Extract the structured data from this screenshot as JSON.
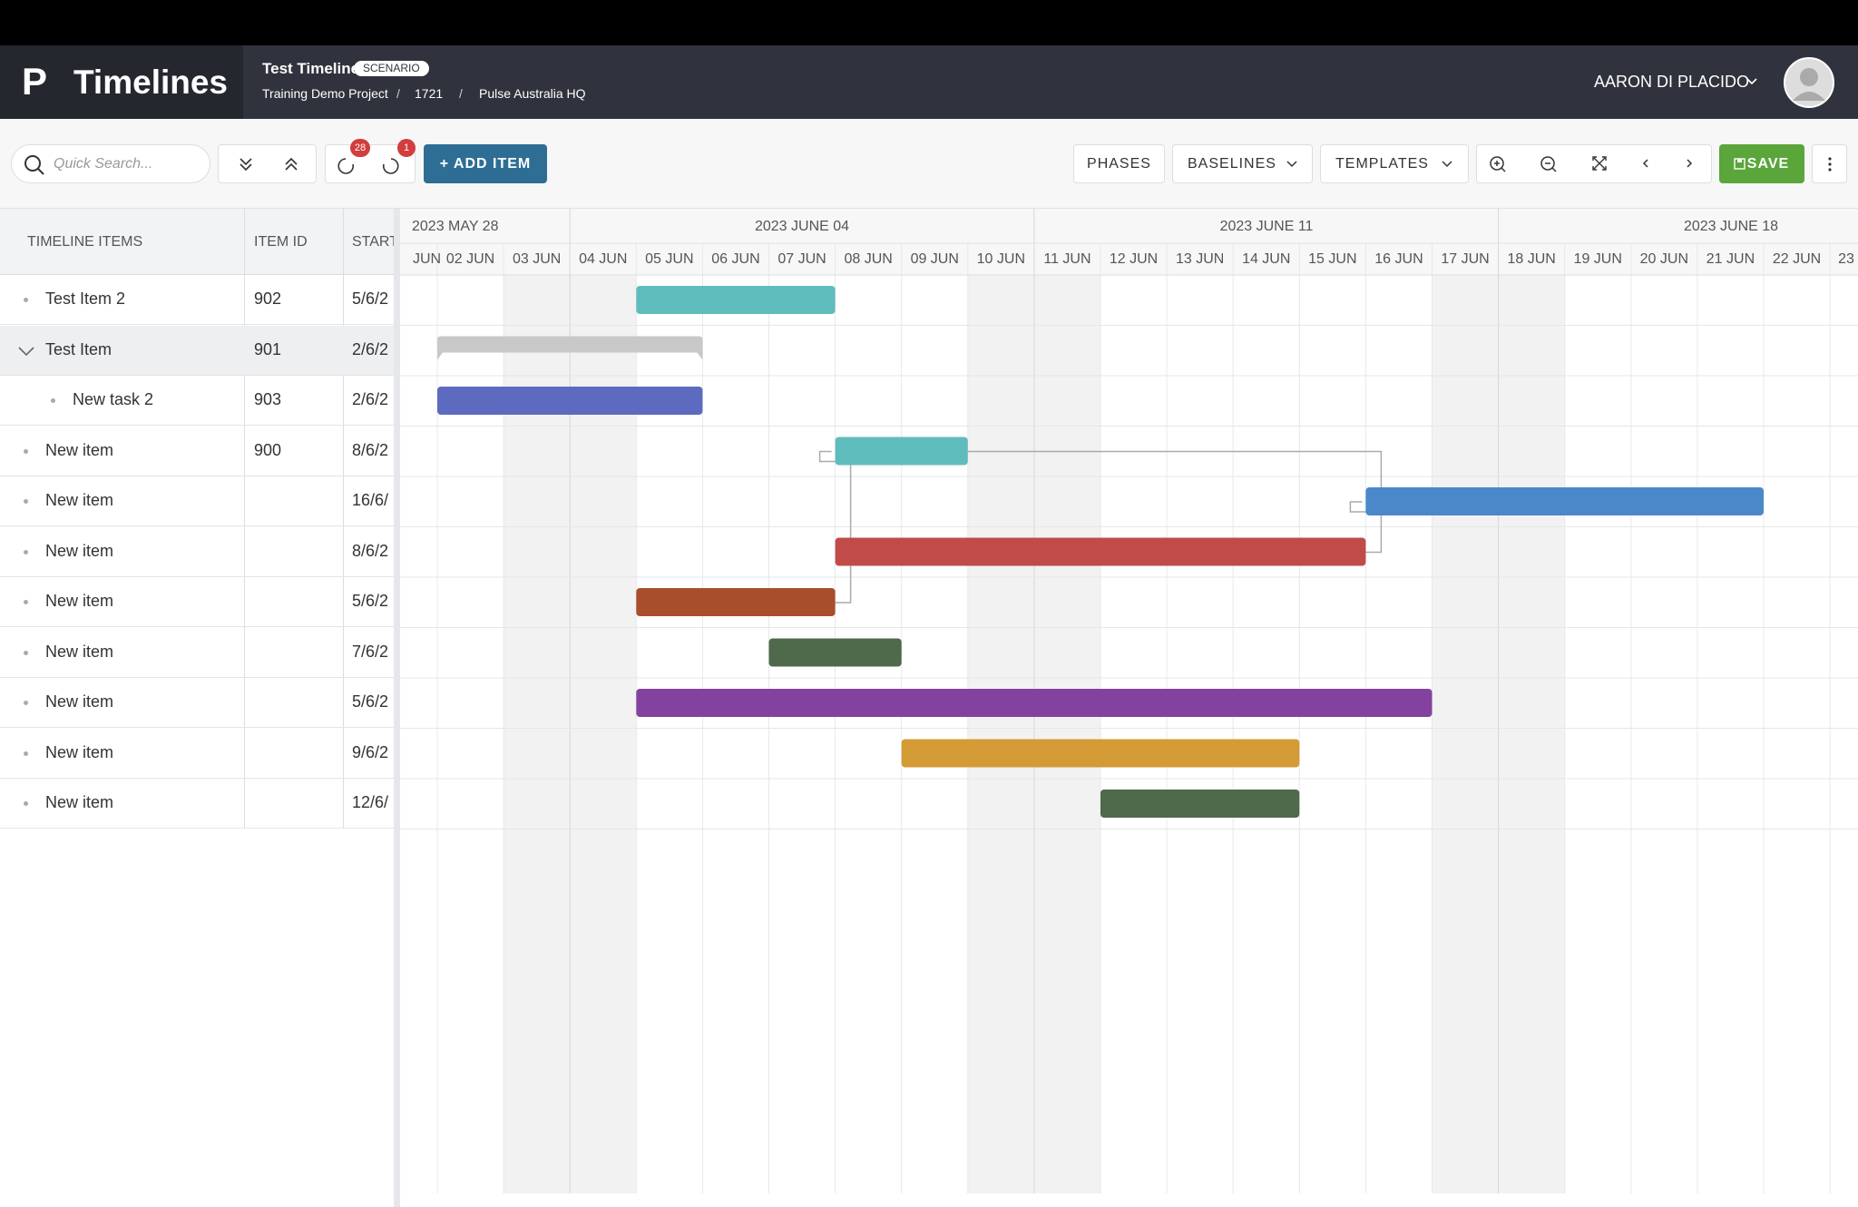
{
  "header": {
    "logo": "P",
    "app_title": "Timelines",
    "timeline_name": "Test Timeline",
    "badge": "SCENARIO",
    "breadcrumb": [
      "Training Demo Project",
      "1721",
      "Pulse Australia HQ"
    ],
    "separator": "/",
    "user": "AARON DI PLACIDO"
  },
  "toolbar": {
    "search_placeholder": "Quick Search...",
    "undo_count": "28",
    "redo_count": "1",
    "add_item": "+ ADD ITEM",
    "buttons": [
      "PHASES",
      "BASELINES",
      "TEMPLATES"
    ],
    "save": "SAVE"
  },
  "grid": {
    "columns": [
      "TIMELINE ITEMS",
      "ITEM ID",
      "START"
    ],
    "weeks": [
      "2023 MAY 28",
      "2023 JUNE 04",
      "2023 JUNE 11",
      "2023 JUNE 18"
    ],
    "days": [
      "JUN",
      "02 JUN",
      "03 JUN",
      "04 JUN",
      "05 JUN",
      "06 JUN",
      "07 JUN",
      "08 JUN",
      "09 JUN",
      "10 JUN",
      "11 JUN",
      "12 JUN",
      "13 JUN",
      "14 JUN",
      "15 JUN",
      "16 JUN",
      "17 JUN",
      "18 JUN",
      "19 JUN",
      "20 JUN",
      "21 JUN",
      "22 JUN",
      "23"
    ],
    "rows": [
      {
        "name": "Test Item 2",
        "id": "902",
        "start": "5/6/2"
      },
      {
        "name": "Test Item",
        "id": "901",
        "start": "2/6/2"
      },
      {
        "name": "New task 2",
        "id": "903",
        "start": "2/6/2"
      },
      {
        "name": "New item",
        "id": "900",
        "start": "8/6/2"
      },
      {
        "name": "New item",
        "start": "16/6/"
      },
      {
        "name": "New item",
        "start": "8/6/2"
      },
      {
        "name": "New item",
        "start": "5/6/2"
      },
      {
        "name": "New item",
        "start": "7/6/2"
      },
      {
        "name": "New item",
        "start": "5/6/2"
      },
      {
        "name": "New item",
        "start": "9/6/2"
      },
      {
        "name": "New item",
        "start": "12/6/"
      }
    ]
  }
}
